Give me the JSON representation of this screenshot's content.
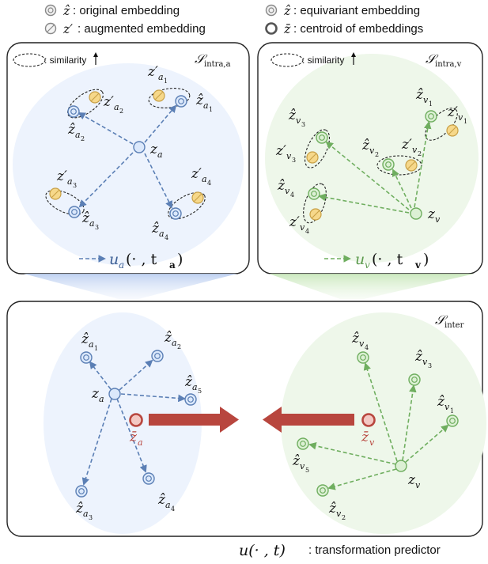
{
  "legend": {
    "hat_symbol": "ẑ",
    "hat_text": " : original embedding",
    "aug_symbol": "z′",
    "aug_text": " : augmented embedding",
    "equiv_symbol": "ẑ",
    "equiv_text": " : equivariant embedding",
    "centroid_symbol": "z̄",
    "centroid_text": " : centroid of embeddings"
  },
  "panels": {
    "intra_a": {
      "similarity_label": ": similarity",
      "title": "intra,a",
      "center": "z",
      "center_sub": "a",
      "predictor": "u",
      "predictor_sub": "a",
      "predictor_args": "(· , t",
      "predictor_args_sub": "a",
      "predictor_close": ")",
      "hats": [
        "a1",
        "a2",
        "a3",
        "a4"
      ],
      "augs": [
        "a1",
        "a2",
        "a3",
        "a4"
      ]
    },
    "intra_v": {
      "similarity_label": ": similarity",
      "title": "intra,v",
      "center": "z",
      "center_sub": "v",
      "predictor": "u",
      "predictor_sub": "v",
      "predictor_args": "(· , t",
      "predictor_args_sub": "v",
      "predictor_close": ")",
      "hats": [
        "v1",
        "v2",
        "v3",
        "v4"
      ],
      "augs": [
        "v1",
        "v2",
        "v3",
        "v4"
      ]
    },
    "inter": {
      "title": "inter",
      "center_a": "a",
      "center_v": "v",
      "hats_a": [
        "a1",
        "a2",
        "a3",
        "a4",
        "a5"
      ],
      "hats_v": [
        "v1",
        "v2",
        "v3",
        "v4",
        "v5"
      ],
      "centroid_a": "a",
      "centroid_v": "v"
    }
  },
  "caption": {
    "func": "u(· , t)",
    "text": " : transformation predictor"
  },
  "colors": {
    "blue_stroke": "#5b7fb5",
    "blue_fill": "#dbe8fb",
    "blue_bg": "#edf3fd",
    "green_stroke": "#6fae5f",
    "green_fill": "#dcf0d4",
    "green_bg": "#eef7ea",
    "yellow_fill": "#f6d88a",
    "yellow_stroke": "#c8a046",
    "red_arrow": "#b8463e",
    "red_fill": "#f3c8c3"
  }
}
